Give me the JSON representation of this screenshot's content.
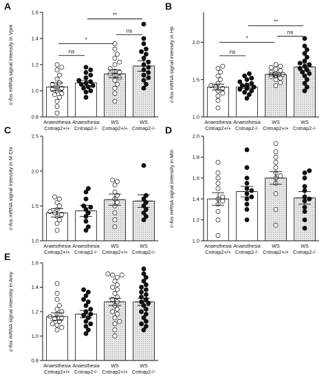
{
  "colors": {
    "axis": "#111111",
    "bar_fill_anaesthesia": "#ffffff",
    "bar_fill_ws": "#dedede",
    "point_open": "#ffffff",
    "point_filled": "#111111"
  },
  "chart_data": [
    {
      "panel": "A",
      "type": "bar",
      "ylabel_prefix": "c-fos",
      "ylabel_rest": " mRNA signal intensity in Vpm",
      "ylim": [
        0.8,
        1.6
      ],
      "yticks": [
        0.8,
        1.0,
        1.2,
        1.4,
        1.6
      ],
      "yticklabels": [
        "0.8",
        "1.0",
        "1.2",
        "1.4",
        "1.6"
      ],
      "categories": [
        {
          "line1": "Anaesthesia",
          "line2": "Cntnap2+/+"
        },
        {
          "line1": "Anaesthesia",
          "line2": "Cntnap2-/-"
        },
        {
          "line1": "WS",
          "line2": "Cntnap2+/+"
        },
        {
          "line1": "WS",
          "line2": "Cntnap2-/-"
        }
      ],
      "series": [
        {
          "mean": 1.03,
          "sem": 0.03,
          "filled": false,
          "ws": false,
          "points": [
            0.83,
            0.88,
            0.92,
            0.95,
            0.97,
            0.98,
            1.0,
            1.01,
            1.02,
            1.03,
            1.05,
            1.06,
            1.09,
            1.12,
            1.16,
            1.18,
            1.2
          ]
        },
        {
          "mean": 1.06,
          "sem": 0.02,
          "filled": true,
          "ws": false,
          "points": [
            0.95,
            0.99,
            1.0,
            1.02,
            1.03,
            1.04,
            1.05,
            1.06,
            1.07,
            1.08,
            1.1,
            1.12,
            1.14,
            1.16,
            1.18
          ]
        },
        {
          "mean": 1.13,
          "sem": 0.03,
          "filled": false,
          "ws": true,
          "points": [
            0.92,
            0.98,
            1.02,
            1.05,
            1.08,
            1.1,
            1.12,
            1.13,
            1.14,
            1.15,
            1.17,
            1.2,
            1.22,
            1.25,
            1.28,
            1.32,
            1.36
          ]
        },
        {
          "mean": 1.19,
          "sem": 0.04,
          "filled": true,
          "ws": true,
          "points": [
            1.02,
            1.05,
            1.08,
            1.1,
            1.12,
            1.14,
            1.16,
            1.18,
            1.2,
            1.22,
            1.25,
            1.28,
            1.3,
            1.32,
            1.36,
            1.4,
            1.51
          ]
        }
      ],
      "significance": [
        {
          "from": 0,
          "to": 1,
          "label": "ns",
          "y": 1.27
        },
        {
          "from": 0,
          "to": 2,
          "label": "*",
          "y": 1.36
        },
        {
          "from": 2,
          "to": 3,
          "label": "ns",
          "y": 1.43
        },
        {
          "from": 1,
          "to": 3,
          "label": "**",
          "y": 1.55
        }
      ]
    },
    {
      "panel": "B",
      "type": "bar",
      "ylabel_prefix": "c-fos",
      "ylabel_rest": " mRNA signal intensity in Hp",
      "ylim": [
        1.0,
        2.4
      ],
      "yticks": [
        1.0,
        1.5,
        2.0
      ],
      "yticklabels": [
        "1.0",
        "1.5",
        "2.0"
      ],
      "categories": [
        {
          "line1": "Anaesthesia",
          "line2": "Cntnap2+/+"
        },
        {
          "line1": "Anaesthesia",
          "line2": "Cntnap2-/-"
        },
        {
          "line1": "WS",
          "line2": "Cntnap2+/+"
        },
        {
          "line1": "WS",
          "line2": "Cntnap2-/-"
        }
      ],
      "series": [
        {
          "mean": 1.4,
          "sem": 0.04,
          "filled": false,
          "ws": false,
          "points": [
            1.12,
            1.22,
            1.28,
            1.32,
            1.35,
            1.38,
            1.4,
            1.42,
            1.45,
            1.5,
            1.55,
            1.6,
            1.65,
            1.68
          ]
        },
        {
          "mean": 1.4,
          "sem": 0.02,
          "filled": true,
          "ws": false,
          "points": [
            1.25,
            1.3,
            1.33,
            1.35,
            1.37,
            1.38,
            1.39,
            1.4,
            1.41,
            1.42,
            1.43,
            1.45,
            1.47,
            1.5,
            1.52,
            1.55,
            1.58
          ]
        },
        {
          "mean": 1.57,
          "sem": 0.02,
          "filled": false,
          "ws": true,
          "points": [
            1.42,
            1.46,
            1.5,
            1.52,
            1.54,
            1.55,
            1.56,
            1.57,
            1.58,
            1.6,
            1.62,
            1.64,
            1.66,
            1.68,
            1.7
          ]
        },
        {
          "mean": 1.67,
          "sem": 0.05,
          "filled": true,
          "ws": true,
          "points": [
            1.35,
            1.4,
            1.45,
            1.5,
            1.55,
            1.58,
            1.6,
            1.63,
            1.65,
            1.68,
            1.7,
            1.72,
            1.75,
            1.8,
            1.85,
            1.9,
            1.95,
            2.05
          ]
        }
      ],
      "significance": [
        {
          "from": 0,
          "to": 1,
          "label": "ns",
          "y": 1.82
        },
        {
          "from": 0,
          "to": 2,
          "label": "*",
          "y": 2.0
        },
        {
          "from": 2,
          "to": 3,
          "label": "ns",
          "y": 2.08
        },
        {
          "from": 1,
          "to": 3,
          "label": "**",
          "y": 2.22
        }
      ]
    },
    {
      "panel": "C",
      "type": "bar",
      "ylabel_prefix": "c-fos",
      "ylabel_rest": " mRNA signal intensity in M Ctx",
      "ylim": [
        1.0,
        2.5
      ],
      "yticks": [
        1.0,
        1.5,
        2.0,
        2.5
      ],
      "yticklabels": [
        "1.0",
        "1.5",
        "2.0",
        "2.5"
      ],
      "categories": [
        {
          "line1": "Anaesthesia",
          "line2": "Cntnap2+/+"
        },
        {
          "line1": "Anaesthesia",
          "line2": "Cntnap2-/-"
        },
        {
          "line1": "WS",
          "line2": "Cntnap2+/+"
        },
        {
          "line1": "WS",
          "line2": "Cntnap2-/-"
        }
      ],
      "series": [
        {
          "mean": 1.4,
          "sem": 0.06,
          "filled": false,
          "ws": false,
          "points": [
            1.15,
            1.25,
            1.3,
            1.35,
            1.38,
            1.4,
            1.42,
            1.45,
            1.5,
            1.55,
            1.6,
            1.63
          ]
        },
        {
          "mean": 1.43,
          "sem": 0.08,
          "filled": true,
          "ws": false,
          "points": [
            1.15,
            1.2,
            1.28,
            1.35,
            1.4,
            1.45,
            1.48,
            1.5,
            1.6,
            1.7,
            1.75
          ]
        },
        {
          "mean": 1.59,
          "sem": 0.08,
          "filled": false,
          "ws": true,
          "points": [
            1.2,
            1.3,
            1.4,
            1.5,
            1.55,
            1.6,
            1.65,
            1.7,
            1.8,
            1.85,
            1.87
          ]
        },
        {
          "mean": 1.57,
          "sem": 0.09,
          "filled": true,
          "ws": true,
          "points": [
            1.3,
            1.35,
            1.4,
            1.45,
            1.5,
            1.55,
            1.6,
            1.65,
            2.08
          ]
        }
      ],
      "significance": []
    },
    {
      "panel": "D",
      "type": "bar",
      "ylabel_prefix": "c-fos",
      "ylabel_rest": " mRNA signal intensity in Mtn",
      "ylim": [
        1.0,
        2.0
      ],
      "yticks": [
        1.0,
        1.2,
        1.4,
        1.6,
        1.8,
        2.0
      ],
      "yticklabels": [
        "1.0",
        "1.2",
        "1.4",
        "1.6",
        "1.8",
        "2.0"
      ],
      "categories": [
        {
          "line1": "Anaesthesia",
          "line2": "Cntnap2+/+"
        },
        {
          "line1": "Anaesthesia",
          "line2": "Cntnap2-/-"
        },
        {
          "line1": "WS",
          "line2": "Cntnap2+/+"
        },
        {
          "line1": "WS",
          "line2": "Cntnap2-/-"
        }
      ],
      "series": [
        {
          "mean": 1.4,
          "sem": 0.06,
          "filled": false,
          "ws": false,
          "points": [
            1.05,
            1.2,
            1.28,
            1.35,
            1.38,
            1.4,
            1.42,
            1.5,
            1.55,
            1.6,
            1.65,
            1.75
          ]
        },
        {
          "mean": 1.47,
          "sem": 0.05,
          "filled": true,
          "ws": false,
          "points": [
            1.2,
            1.3,
            1.35,
            1.4,
            1.42,
            1.45,
            1.48,
            1.5,
            1.55,
            1.6,
            1.7,
            1.87
          ]
        },
        {
          "mean": 1.6,
          "sem": 0.06,
          "filled": false,
          "ws": true,
          "points": [
            1.15,
            1.3,
            1.45,
            1.55,
            1.6,
            1.62,
            1.65,
            1.7,
            1.75,
            1.8,
            1.85,
            1.93
          ]
        },
        {
          "mean": 1.41,
          "sem": 0.06,
          "filled": true,
          "ws": true,
          "points": [
            1.12,
            1.2,
            1.28,
            1.32,
            1.38,
            1.4,
            1.42,
            1.48,
            1.52,
            1.6,
            1.65,
            1.67
          ]
        }
      ],
      "significance": []
    },
    {
      "panel": "E",
      "type": "bar",
      "ylabel_prefix": "c-fos",
      "ylabel_rest": " mRNA signal intensity in Amy",
      "ylim": [
        0.8,
        1.6
      ],
      "yticks": [
        0.8,
        1.0,
        1.2,
        1.4,
        1.6
      ],
      "yticklabels": [
        "0.8",
        "1.0",
        "1.2",
        "1.4",
        "1.6"
      ],
      "categories": [
        {
          "line1": "Anaesthesia",
          "line2": "Cntnap2+/+"
        },
        {
          "line1": "Anaesthesia",
          "line2": "Cntnap2-/-"
        },
        {
          "line1": "WS",
          "line2": "Cntnap2+/+"
        },
        {
          "line1": "WS",
          "line2": "Cntnap2-/-"
        }
      ],
      "series": [
        {
          "mean": 1.16,
          "sem": 0.03,
          "filled": false,
          "ws": false,
          "points": [
            1.05,
            1.07,
            1.09,
            1.1,
            1.12,
            1.14,
            1.15,
            1.16,
            1.18,
            1.2,
            1.22,
            1.25,
            1.3,
            1.35,
            1.43
          ]
        },
        {
          "mean": 1.18,
          "sem": 0.03,
          "filled": true,
          "ws": false,
          "points": [
            1.02,
            1.05,
            1.08,
            1.1,
            1.12,
            1.15,
            1.17,
            1.18,
            1.2,
            1.22,
            1.25,
            1.28,
            1.3,
            1.33,
            1.36,
            1.38
          ]
        },
        {
          "mean": 1.28,
          "sem": 0.03,
          "filled": false,
          "ws": true,
          "points": [
            1.0,
            1.05,
            1.1,
            1.12,
            1.15,
            1.18,
            1.2,
            1.22,
            1.25,
            1.28,
            1.3,
            1.32,
            1.35,
            1.38,
            1.4,
            1.42,
            1.45,
            1.48,
            1.5,
            1.5,
            1.51
          ]
        },
        {
          "mean": 1.28,
          "sem": 0.03,
          "filled": true,
          "ws": true,
          "points": [
            1.05,
            1.08,
            1.1,
            1.12,
            1.15,
            1.18,
            1.2,
            1.22,
            1.25,
            1.27,
            1.28,
            1.3,
            1.32,
            1.34,
            1.36,
            1.38,
            1.4,
            1.42,
            1.45,
            1.48,
            1.51,
            1.55
          ]
        }
      ],
      "significance": []
    }
  ]
}
